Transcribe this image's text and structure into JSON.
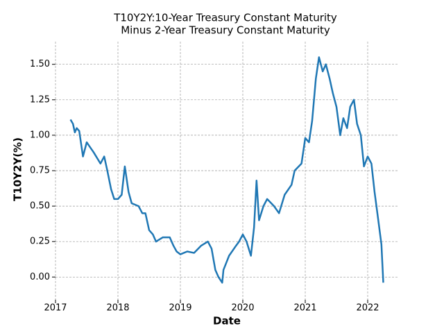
{
  "chart_data": {
    "type": "line",
    "title": [
      "T10Y2Y:10-Year Treasury Constant Maturity",
      " Minus 2-Year Treasury Constant Maturity"
    ],
    "x_label": "Date",
    "y_label": "T10Y2Y(%)",
    "x": [
      2017.24,
      2017.28,
      2017.31,
      2017.34,
      2017.38,
      2017.44,
      2017.5,
      2017.61,
      2017.72,
      2017.78,
      2017.83,
      2017.89,
      2017.94,
      2018.0,
      2018.06,
      2018.11,
      2018.17,
      2018.22,
      2018.33,
      2018.39,
      2018.44,
      2018.5,
      2018.56,
      2018.61,
      2018.72,
      2018.83,
      2018.89,
      2018.94,
      2019.0,
      2019.11,
      2019.22,
      2019.33,
      2019.44,
      2019.5,
      2019.56,
      2019.61,
      2019.67,
      2019.69,
      2019.78,
      2019.89,
      2019.94,
      2020.0,
      2020.06,
      2020.13,
      2020.18,
      2020.22,
      2020.26,
      2020.33,
      2020.39,
      2020.5,
      2020.58,
      2020.67,
      2020.78,
      2020.83,
      2020.94,
      2021.0,
      2021.06,
      2021.11,
      2021.17,
      2021.22,
      2021.28,
      2021.33,
      2021.39,
      2021.44,
      2021.5,
      2021.56,
      2021.61,
      2021.67,
      2021.72,
      2021.78,
      2021.83,
      2021.89,
      2021.94,
      2022.0,
      2022.06,
      2022.11,
      2022.17,
      2022.22,
      2022.25
    ],
    "series": [
      {
        "name": "T10Y2Y",
        "color": "#1f77b4",
        "values": [
          1.11,
          1.08,
          1.02,
          1.05,
          1.03,
          0.85,
          0.95,
          0.88,
          0.8,
          0.85,
          0.75,
          0.62,
          0.55,
          0.55,
          0.58,
          0.78,
          0.6,
          0.52,
          0.5,
          0.45,
          0.45,
          0.33,
          0.3,
          0.25,
          0.28,
          0.28,
          0.22,
          0.18,
          0.16,
          0.18,
          0.17,
          0.22,
          0.25,
          0.2,
          0.05,
          0.0,
          -0.04,
          0.05,
          0.15,
          0.22,
          0.25,
          0.3,
          0.25,
          0.15,
          0.35,
          0.68,
          0.4,
          0.5,
          0.55,
          0.5,
          0.45,
          0.58,
          0.65,
          0.75,
          0.8,
          0.98,
          0.95,
          1.1,
          1.4,
          1.55,
          1.45,
          1.5,
          1.4,
          1.3,
          1.2,
          1.0,
          1.12,
          1.05,
          1.2,
          1.25,
          1.08,
          1.0,
          0.78,
          0.85,
          0.8,
          0.6,
          0.4,
          0.23,
          -0.04
        ]
      }
    ],
    "xlim": [
      2017.0,
      2022.5
    ],
    "xticks": [
      2017,
      2018,
      2019,
      2020,
      2021,
      2022
    ],
    "ylim": [
      -0.16,
      1.66
    ],
    "yticks": [
      {
        "value": 0,
        "label": "0.00"
      },
      {
        "value": 0.25,
        "label": "0.25"
      },
      {
        "value": 0.5,
        "label": "0.50"
      },
      {
        "value": 0.75,
        "label": "0.75"
      },
      {
        "value": 1,
        "label": "1.00"
      },
      {
        "value": 1.25,
        "label": "1.25"
      },
      {
        "value": 1.5,
        "label": "1.50"
      }
    ],
    "grid": true
  }
}
